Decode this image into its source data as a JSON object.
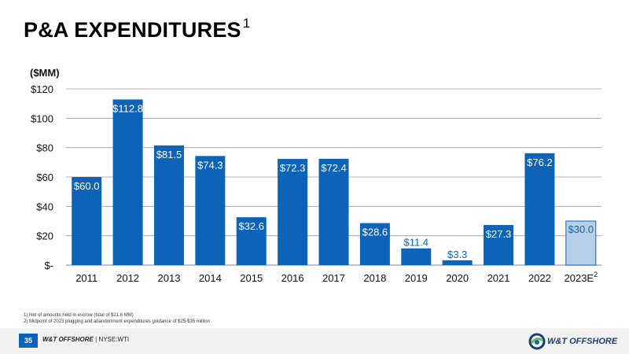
{
  "title": "P&A EXPENDITURES",
  "title_sup": "1",
  "unit_label": "($MM)",
  "chart_data": {
    "type": "bar",
    "categories": [
      "2011",
      "2012",
      "2013",
      "2014",
      "2015",
      "2016",
      "2017",
      "2018",
      "2019",
      "2020",
      "2021",
      "2022",
      "2023E"
    ],
    "category_superscripts": [
      "",
      "",
      "",
      "",
      "",
      "",
      "",
      "",
      "",
      "",
      "",
      "",
      "2"
    ],
    "values": [
      60.0,
      112.8,
      81.5,
      74.3,
      32.6,
      72.3,
      72.4,
      28.6,
      11.4,
      3.3,
      27.3,
      76.2,
      30.0
    ],
    "value_labels": [
      "$60.0",
      "$112.8",
      "$81.5",
      "$74.3",
      "$32.6",
      "$72.3",
      "$72.4",
      "$28.6",
      "$11.4",
      "$3.3",
      "$27.3",
      "$76.2",
      "$30.0"
    ],
    "estimate_flags": [
      false,
      false,
      false,
      false,
      false,
      false,
      false,
      false,
      false,
      false,
      false,
      false,
      true
    ],
    "ylim": [
      0,
      120
    ],
    "yticks": [
      0,
      20,
      40,
      60,
      80,
      100,
      120
    ],
    "ytick_labels": [
      "$-",
      "$20",
      "$40",
      "$60",
      "$80",
      "$100",
      "$120"
    ],
    "grid": true,
    "colors": {
      "actual": "#0d63b8",
      "estimate_fill": "#b8cfe8",
      "estimate_stroke": "#0d63b8",
      "label_inside": "#ffffff",
      "label_outside": "#0d63b8",
      "grid": "#9a9a9a"
    }
  },
  "footnotes": [
    "1)   Net of amounts held in escrow (total of $21.6 MM)",
    "2)   Midpoint of 2023 plugging and abandonment expenditures guidance of $25-$35 million"
  ],
  "footer": {
    "page_number": "35",
    "company": "W&T OFFSHORE",
    "separator": "|",
    "ticker": "NYSE:WTI",
    "logo_text": "W&T OFFSHORE",
    "logo_icon": "wt-swirl-logo-icon"
  }
}
